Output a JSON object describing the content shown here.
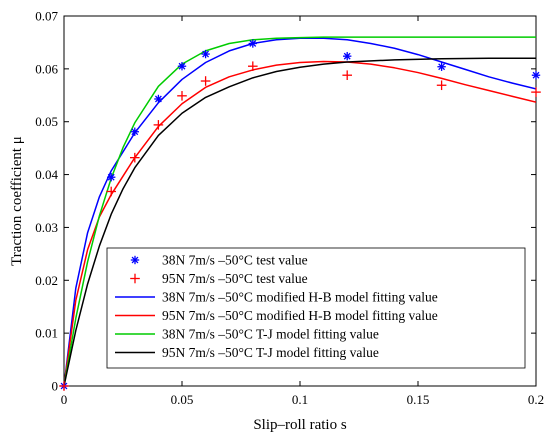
{
  "chart_data": {
    "type": "line",
    "xlabel": "Slip–roll ratio   s",
    "ylabel": "Traction coefficient   μ",
    "xlim": [
      0,
      0.2
    ],
    "ylim": [
      0,
      0.07
    ],
    "xticks": [
      0,
      0.05,
      0.1,
      0.15,
      0.2
    ],
    "xtick_labels": [
      "0",
      "0.05",
      "0.1",
      "0.15",
      "0.2"
    ],
    "yticks": [
      0,
      0.01,
      0.02,
      0.03,
      0.04,
      0.05,
      0.06,
      0.07
    ],
    "ytick_labels": [
      "0",
      "0.01",
      "0.02",
      "0.03",
      "0.04",
      "0.05",
      "0.06",
      "0.07"
    ],
    "grid": false,
    "legend_position": "bottom-center",
    "series": [
      {
        "name": "38N 7m/s –50°C test value",
        "kind": "scatter",
        "marker": "asterisk",
        "color": "#0000ff",
        "x": [
          0,
          0.02,
          0.03,
          0.04,
          0.05,
          0.06,
          0.08,
          0.12,
          0.16,
          0.2
        ],
        "y": [
          0,
          0.0395,
          0.0481,
          0.0543,
          0.0605,
          0.0628,
          0.0648,
          0.0624,
          0.0604,
          0.0588
        ]
      },
      {
        "name": "95N 7m/s –50°C test value",
        "kind": "scatter",
        "marker": "plus",
        "color": "#ff0000",
        "x": [
          0,
          0.02,
          0.03,
          0.04,
          0.05,
          0.06,
          0.08,
          0.12,
          0.16,
          0.2
        ],
        "y": [
          0,
          0.0368,
          0.0432,
          0.0494,
          0.0549,
          0.0577,
          0.0605,
          0.0588,
          0.0569,
          0.0556
        ]
      },
      {
        "name": "38N 7m/s –50°C modified H-B model fitting value",
        "kind": "line",
        "color": "#0000ff",
        "x": [
          0,
          0.005,
          0.01,
          0.015,
          0.02,
          0.03,
          0.04,
          0.05,
          0.06,
          0.07,
          0.08,
          0.09,
          0.1,
          0.11,
          0.12,
          0.13,
          0.14,
          0.15,
          0.16,
          0.17,
          0.18,
          0.19,
          0.2
        ],
        "y": [
          0,
          0.0185,
          0.029,
          0.0358,
          0.0407,
          0.0479,
          0.0536,
          0.058,
          0.0612,
          0.0634,
          0.0648,
          0.0655,
          0.0658,
          0.0658,
          0.0655,
          0.0648,
          0.0639,
          0.0627,
          0.0613,
          0.0599,
          0.0585,
          0.0573,
          0.0562
        ]
      },
      {
        "name": "95N 7m/s –50°C modified H-B model fitting value",
        "kind": "line",
        "color": "#ff0000",
        "x": [
          0,
          0.005,
          0.01,
          0.015,
          0.02,
          0.03,
          0.04,
          0.05,
          0.06,
          0.07,
          0.08,
          0.09,
          0.1,
          0.11,
          0.12,
          0.13,
          0.14,
          0.15,
          0.16,
          0.17,
          0.18,
          0.19,
          0.2
        ],
        "y": [
          0,
          0.0162,
          0.0258,
          0.032,
          0.0362,
          0.0432,
          0.0491,
          0.0534,
          0.0565,
          0.0585,
          0.0598,
          0.0607,
          0.0612,
          0.0614,
          0.0613,
          0.0609,
          0.0602,
          0.0593,
          0.0582,
          0.057,
          0.0559,
          0.0548,
          0.0537
        ]
      },
      {
        "name": "38N 7m/s –50°C T-J model fitting value",
        "kind": "line",
        "color": "#00cc00",
        "x": [
          0,
          0.005,
          0.01,
          0.015,
          0.02,
          0.025,
          0.03,
          0.04,
          0.05,
          0.06,
          0.07,
          0.08,
          0.09,
          0.1,
          0.11,
          0.12,
          0.14,
          0.16,
          0.18,
          0.2
        ],
        "y": [
          0,
          0.0128,
          0.0235,
          0.0322,
          0.0393,
          0.0451,
          0.0498,
          0.0567,
          0.0609,
          0.0634,
          0.0648,
          0.0655,
          0.0658,
          0.0659,
          0.066,
          0.066,
          0.066,
          0.066,
          0.066,
          0.066
        ]
      },
      {
        "name": "95N 7m/s –50°C T-J model fitting value",
        "kind": "line",
        "color": "#000000",
        "x": [
          0,
          0.005,
          0.01,
          0.015,
          0.02,
          0.025,
          0.03,
          0.04,
          0.05,
          0.06,
          0.07,
          0.08,
          0.09,
          0.1,
          0.11,
          0.12,
          0.14,
          0.16,
          0.18,
          0.2
        ],
        "y": [
          0,
          0.0105,
          0.0193,
          0.0265,
          0.0325,
          0.0373,
          0.0413,
          0.0474,
          0.0516,
          0.0546,
          0.0566,
          0.0583,
          0.0595,
          0.0603,
          0.0609,
          0.0613,
          0.0617,
          0.0619,
          0.062,
          0.062
        ]
      }
    ]
  }
}
